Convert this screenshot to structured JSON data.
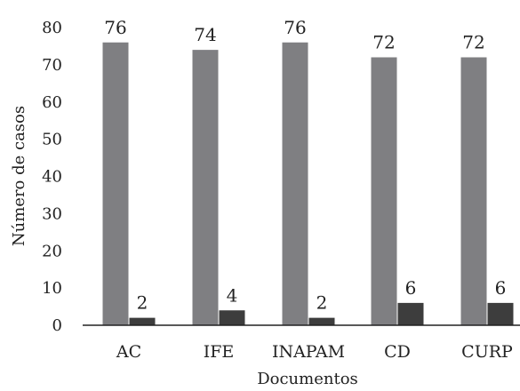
{
  "chart_data": {
    "type": "bar",
    "categories": [
      "AC",
      "IFE",
      "INAPAM",
      "CD",
      "CURP"
    ],
    "series": [
      {
        "values": [
          76,
          74,
          76,
          72,
          72
        ],
        "color": "#7f7f82"
      },
      {
        "values": [
          2,
          4,
          2,
          6,
          6
        ],
        "color": "#3d3d3d"
      }
    ],
    "xlabel": "Documentos",
    "ylabel": "Número de casos",
    "ylim": [
      0,
      80
    ],
    "yticks": [
      0,
      10,
      20,
      30,
      40,
      50,
      60,
      70,
      80
    ],
    "grid": false,
    "legend": "none",
    "data_labels": true
  }
}
